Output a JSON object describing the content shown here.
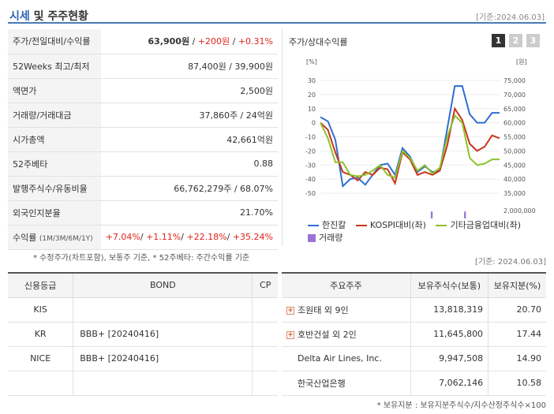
{
  "header": {
    "title_accent": "시세",
    "title_rest": " 및 주주현황",
    "date": "[기준:2024.06.03]"
  },
  "quote": {
    "price_label": "주가/전일대비/수익률",
    "price": "63,900원",
    "change": "+200원",
    "rate": "+0.31%",
    "wk52_label": "52Weeks 최고/최저",
    "wk52": "87,400원 / 39,900원",
    "par_label": "액면가",
    "par": "2,500원",
    "volume_label": "거래량/거래대금",
    "volume": "37,860주 / 24억원",
    "mcap_label": "시가총액",
    "mcap": "42,661억원",
    "beta_label": "52주베타",
    "beta": "0.88",
    "shares_label": "발행주식수/유동비율",
    "shares": "66,762,279주 / 68.07%",
    "foreign_label": "외국인지분율",
    "foreign": "21.70%",
    "return_label": "수익률",
    "return_sub": "(1M/3M/6M/1Y)",
    "returns": [
      "+7.04%",
      "+1.11%",
      "+22.18%",
      "+35.24%"
    ]
  },
  "notes": {
    "left": "* 수정주가(차트포함), 보통주 기준, * 52주베타: 주간수익률 기준",
    "right": "[기준: 2024.06.03]",
    "bottom": "* 보유지분 : 보유지분주식수/지수산정주식수×100"
  },
  "chart_panel": {
    "title": "주가/상대수익률",
    "pages": [
      "1",
      "2",
      "3"
    ]
  },
  "chart_data": {
    "type": "line",
    "left_unit": "[%]",
    "right_unit": "[원]",
    "y_left_ticks": [
      "30",
      "20",
      "10",
      "0",
      "-10",
      "-20",
      "-30",
      "-40",
      "-50"
    ],
    "y_right_ticks": [
      "75,000",
      "70,000",
      "65,000",
      "60,000",
      "55,000",
      "50,000",
      "45,000",
      "40,000",
      "35,000"
    ],
    "volume_tick": "2,000,000",
    "x_ticks": [
      "2022/06/30",
      "2023/04/28",
      "2024/02/29"
    ],
    "ylim": [
      -50,
      30
    ],
    "colors": {
      "hanjin": "#2f6fd0",
      "kospi": "#c9351c",
      "other": "#8cc22a",
      "volume": "#9a73d6"
    },
    "series": [
      {
        "name": "한진칼",
        "color": "#2f6fd0",
        "values": [
          4,
          1,
          -12,
          -45,
          -40,
          -39,
          -44,
          -37,
          -30,
          -29,
          -37,
          -18,
          -24,
          -35,
          -31,
          -35,
          -34,
          -4,
          26,
          26,
          6,
          0,
          0,
          7,
          7
        ]
      },
      {
        "name": "KOSPI대비(좌)",
        "color": "#c9351c",
        "values": [
          0,
          -5,
          -21,
          -35,
          -37,
          -41,
          -35,
          -37,
          -32,
          -33,
          -43,
          -21,
          -26,
          -37,
          -35,
          -37,
          -34,
          -16,
          10,
          2,
          -15,
          -20,
          -17,
          -9,
          -11
        ]
      },
      {
        "name": "기타금융업대비(좌)",
        "color": "#8cc22a",
        "values": [
          0,
          -11,
          -28,
          -28,
          -37,
          -38,
          -37,
          -34,
          -30,
          -37,
          -39,
          -20,
          -25,
          -34,
          -30,
          -36,
          -32,
          -10,
          5,
          0,
          -25,
          -30,
          -29,
          -26,
          -26
        ]
      }
    ],
    "volume": {
      "name": "거래량",
      "color": "#9a73d6",
      "values": [
        60000,
        40000,
        30000,
        160000,
        30000,
        110000,
        90000,
        40000,
        50000,
        60000,
        30000,
        50000,
        80000,
        70000,
        30000,
        40000,
        20000,
        40000,
        50000,
        70000,
        20000,
        30000,
        30000,
        30000,
        20000,
        40000,
        30000,
        30000,
        30000,
        900000,
        40000,
        50000,
        60000,
        30000,
        30000,
        50000,
        40000,
        70000,
        60000,
        30000,
        50000,
        60000,
        90000,
        1900000,
        120000,
        40000,
        30000,
        80000,
        60000,
        40000,
        50000,
        60000,
        80000,
        30000,
        200000,
        60000,
        1900000,
        80000,
        40000,
        30000,
        50000,
        30000,
        400000,
        60000,
        50000,
        50000,
        60000,
        50000,
        40000,
        30000
      ]
    }
  },
  "legend": [
    "한진칼",
    "KOSPI대비(좌)",
    "기타금융업대비(좌)",
    "거래량"
  ],
  "credit": {
    "headers": [
      "신용등급",
      "BOND",
      "CP"
    ],
    "rows": [
      {
        "agency": "KIS",
        "bond": "",
        "cp": ""
      },
      {
        "agency": "KR",
        "bond": "BBB+ [20240416]",
        "cp": ""
      },
      {
        "agency": "NICE",
        "bond": "BBB+ [20240416]",
        "cp": ""
      },
      {
        "agency": "",
        "bond": "",
        "cp": ""
      }
    ]
  },
  "holders": {
    "headers": [
      "주요주주",
      "보유주식수(보통)",
      "보유지분(%)"
    ],
    "rows": [
      {
        "name": "조원태 외 9인",
        "shares": "13,818,319",
        "pct": "20.70",
        "expand": true
      },
      {
        "name": "호반건설 외 2인",
        "shares": "11,645,800",
        "pct": "17.44",
        "expand": true
      },
      {
        "name": "Delta Air Lines, Inc.",
        "shares": "9,947,508",
        "pct": "14.90",
        "expand": false
      },
      {
        "name": "한국산업은행",
        "shares": "7,062,146",
        "pct": "10.58",
        "expand": false
      }
    ]
  }
}
